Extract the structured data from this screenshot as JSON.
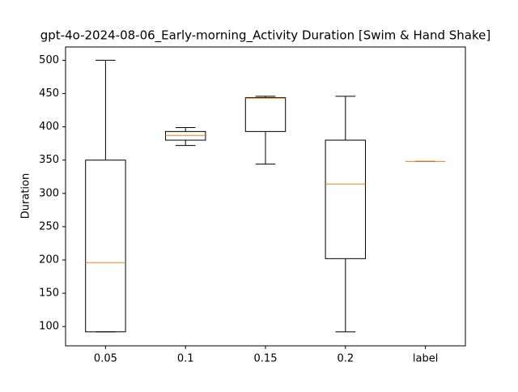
{
  "chart_data": {
    "type": "box",
    "title": "gpt-4o-2024-08-06_Early-morning_Activity Duration [Swim & Hand Shake]",
    "ylabel": "Duration",
    "categories": [
      "0.05",
      "0.1",
      "0.15",
      "0.2",
      "label"
    ],
    "boxes": [
      {
        "whisker_low": 92,
        "q1": 92,
        "median": 196,
        "q3": 350,
        "whisker_high": 500
      },
      {
        "whisker_low": 372,
        "q1": 380,
        "median": 387,
        "q3": 393,
        "whisker_high": 399
      },
      {
        "whisker_low": 344,
        "q1": 393,
        "median": 443,
        "q3": 444,
        "whisker_high": 446
      },
      {
        "whisker_low": 92,
        "q1": 202,
        "median": 314,
        "q3": 380,
        "whisker_high": 446
      },
      {
        "whisker_low": 348,
        "q1": 348,
        "median": 348,
        "q3": 348,
        "whisker_high": 348
      }
    ],
    "box_color": "#000000",
    "median_color": "#ff7f0e",
    "ylim": [
      71,
      520
    ],
    "yticks": [
      100,
      150,
      200,
      250,
      300,
      350,
      400,
      450,
      500
    ]
  }
}
